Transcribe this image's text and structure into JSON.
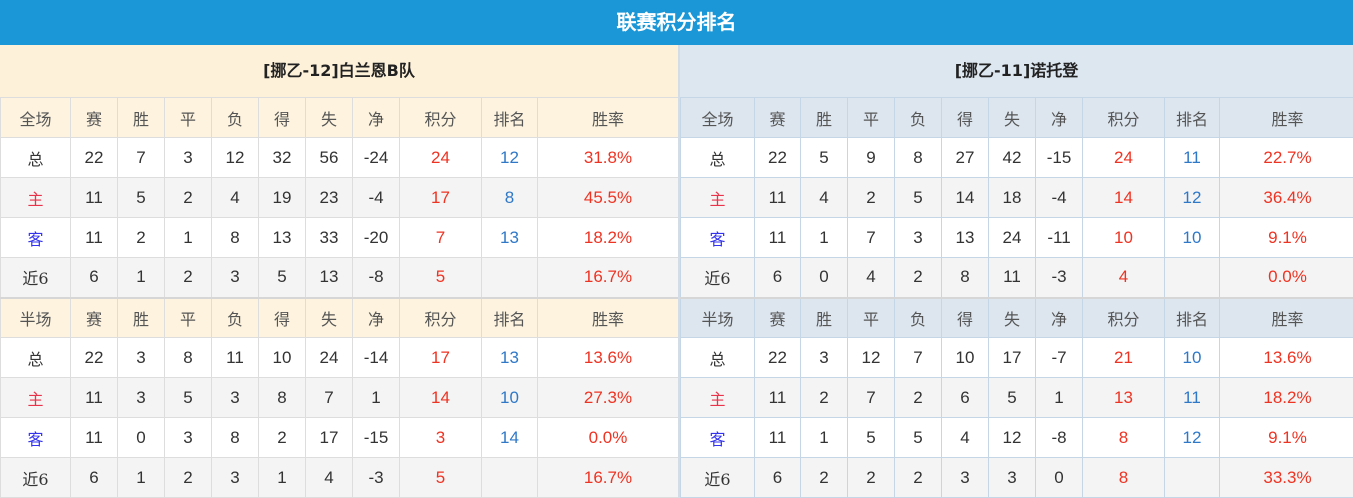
{
  "title": "联赛积分排名",
  "columns_full": [
    "全场",
    "赛",
    "胜",
    "平",
    "负",
    "得",
    "失",
    "净",
    "积分",
    "排名",
    "胜率"
  ],
  "columns_half": [
    "半场",
    "赛",
    "胜",
    "平",
    "负",
    "得",
    "失",
    "净",
    "积分",
    "排名",
    "胜率"
  ],
  "colors": {
    "title_bg": "#1b96d6",
    "points": "#ee3322",
    "rank": "#2f78c8",
    "home": "#e8334a",
    "away": "#3333ee"
  },
  "teams": [
    {
      "name": "[挪乙-12]白兰恩B队",
      "full": [
        [
          "总",
          "22",
          "7",
          "3",
          "12",
          "32",
          "56",
          "-24",
          "24",
          "12",
          "31.8%"
        ],
        [
          "主",
          "11",
          "5",
          "2",
          "4",
          "19",
          "23",
          "-4",
          "17",
          "8",
          "45.5%"
        ],
        [
          "客",
          "11",
          "2",
          "1",
          "8",
          "13",
          "33",
          "-20",
          "7",
          "13",
          "18.2%"
        ],
        [
          "近6",
          "6",
          "1",
          "2",
          "3",
          "5",
          "13",
          "-8",
          "5",
          "",
          "16.7%"
        ]
      ],
      "half": [
        [
          "总",
          "22",
          "3",
          "8",
          "11",
          "10",
          "24",
          "-14",
          "17",
          "13",
          "13.6%"
        ],
        [
          "主",
          "11",
          "3",
          "5",
          "3",
          "8",
          "7",
          "1",
          "14",
          "10",
          "27.3%"
        ],
        [
          "客",
          "11",
          "0",
          "3",
          "8",
          "2",
          "17",
          "-15",
          "3",
          "14",
          "0.0%"
        ],
        [
          "近6",
          "6",
          "1",
          "2",
          "3",
          "1",
          "4",
          "-3",
          "5",
          "",
          "16.7%"
        ]
      ]
    },
    {
      "name": "[挪乙-11]诺托登",
      "full": [
        [
          "总",
          "22",
          "5",
          "9",
          "8",
          "27",
          "42",
          "-15",
          "24",
          "11",
          "22.7%"
        ],
        [
          "主",
          "11",
          "4",
          "2",
          "5",
          "14",
          "18",
          "-4",
          "14",
          "12",
          "36.4%"
        ],
        [
          "客",
          "11",
          "1",
          "7",
          "3",
          "13",
          "24",
          "-11",
          "10",
          "10",
          "9.1%"
        ],
        [
          "近6",
          "6",
          "0",
          "4",
          "2",
          "8",
          "11",
          "-3",
          "4",
          "",
          "0.0%"
        ]
      ],
      "half": [
        [
          "总",
          "22",
          "3",
          "12",
          "7",
          "10",
          "17",
          "-7",
          "21",
          "10",
          "13.6%"
        ],
        [
          "主",
          "11",
          "2",
          "7",
          "2",
          "6",
          "5",
          "1",
          "13",
          "11",
          "18.2%"
        ],
        [
          "客",
          "11",
          "1",
          "5",
          "5",
          "4",
          "12",
          "-8",
          "8",
          "12",
          "9.1%"
        ],
        [
          "近6",
          "6",
          "2",
          "2",
          "2",
          "3",
          "3",
          "0",
          "8",
          "",
          "33.3%"
        ]
      ]
    }
  ]
}
